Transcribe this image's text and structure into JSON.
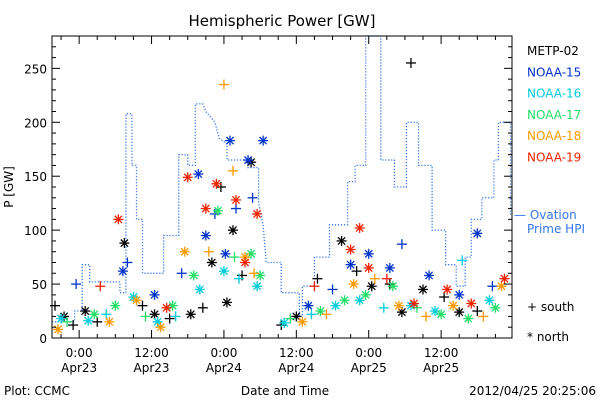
{
  "chart_data": {
    "type": "scatter",
    "title": "Hemispheric Power [GW]",
    "ylabel": "P [GW]",
    "xlabel": "Date and Time",
    "x_unit": "UT time",
    "xlim": [
      "2012-04-22T19:30",
      "2012-04-25T23:45"
    ],
    "ylim": [
      0,
      280
    ],
    "yticks": [
      0,
      50,
      100,
      150,
      200,
      250
    ],
    "xticks": [
      {
        "time": "2012-04-23T00:00",
        "line1": "0:00",
        "line2": "Apr23"
      },
      {
        "time": "2012-04-23T12:00",
        "line1": "12:00",
        "line2": "Apr23"
      },
      {
        "time": "2012-04-24T00:00",
        "line1": "0:00",
        "line2": "Apr24"
      },
      {
        "time": "2012-04-24T12:00",
        "line1": "12:00",
        "line2": "Apr24"
      },
      {
        "time": "2012-04-25T00:00",
        "line1": "0:00",
        "line2": "Apr25"
      },
      {
        "time": "2012-04-25T12:00",
        "line1": "12:00",
        "line2": "Apr25"
      }
    ],
    "legend_placement": "right",
    "legend": [
      {
        "name": "METP-02",
        "color": "#000000"
      },
      {
        "name": "NOAA-15",
        "color": "#0033cc"
      },
      {
        "name": "NOAA-16",
        "color": "#00ccdd"
      },
      {
        "name": "NOAA-17",
        "color": "#22dd66"
      },
      {
        "name": "NOAA-18",
        "color": "#ff9900"
      },
      {
        "name": "NOAA-19",
        "color": "#ee2200"
      }
    ],
    "ovation_line": {
      "label_line1": "— Ovation",
      "label_line2": "Prime HPI",
      "color": "#3377ee",
      "points": [
        [
          "2012-04-22T19:30",
          15
        ],
        [
          "2012-04-22T23:15",
          15
        ],
        [
          "2012-04-22T23:15",
          25
        ],
        [
          "2012-04-23T00:30",
          25
        ],
        [
          "2012-04-23T00:30",
          68
        ],
        [
          "2012-04-23T01:45",
          68
        ],
        [
          "2012-04-23T01:45",
          52
        ],
        [
          "2012-04-23T06:45",
          52
        ],
        [
          "2012-04-23T06:45",
          42
        ],
        [
          "2012-04-23T07:45",
          42
        ],
        [
          "2012-04-23T07:45",
          208
        ],
        [
          "2012-04-23T08:45",
          208
        ],
        [
          "2012-04-23T08:45",
          160
        ],
        [
          "2012-04-23T09:30",
          160
        ],
        [
          "2012-04-23T09:30",
          110
        ],
        [
          "2012-04-23T10:30",
          110
        ],
        [
          "2012-04-23T10:30",
          60
        ],
        [
          "2012-04-23T14:00",
          60
        ],
        [
          "2012-04-23T14:00",
          95
        ],
        [
          "2012-04-23T16:30",
          95
        ],
        [
          "2012-04-23T16:30",
          170
        ],
        [
          "2012-04-23T18:00",
          170
        ],
        [
          "2012-04-23T18:00",
          160
        ],
        [
          "2012-04-23T19:15",
          160
        ],
        [
          "2012-04-23T19:15",
          217
        ],
        [
          "2012-04-23T20:30",
          217
        ],
        [
          "2012-04-23T21:00",
          210
        ],
        [
          "2012-04-23T22:30",
          200
        ],
        [
          "2012-04-23T23:15",
          185
        ],
        [
          "2012-04-24T00:30",
          180
        ],
        [
          "2012-04-24T00:30",
          165
        ],
        [
          "2012-04-24T04:00",
          165
        ],
        [
          "2012-04-24T04:00",
          158
        ],
        [
          "2012-04-24T05:45",
          158
        ],
        [
          "2012-04-24T05:45",
          125
        ],
        [
          "2012-04-24T06:30",
          105
        ],
        [
          "2012-04-24T07:00",
          70
        ],
        [
          "2012-04-24T09:30",
          70
        ],
        [
          "2012-04-24T09:30",
          42
        ],
        [
          "2012-04-24T12:30",
          42
        ],
        [
          "2012-04-24T12:30",
          20
        ],
        [
          "2012-04-24T13:00",
          20
        ],
        [
          "2012-04-24T13:00",
          48
        ],
        [
          "2012-04-24T15:00",
          48
        ],
        [
          "2012-04-24T15:00",
          75
        ],
        [
          "2012-04-24T17:30",
          75
        ],
        [
          "2012-04-24T17:30",
          105
        ],
        [
          "2012-04-24T20:30",
          105
        ],
        [
          "2012-04-24T20:30",
          145
        ],
        [
          "2012-04-24T21:45",
          145
        ],
        [
          "2012-04-24T21:45",
          160
        ],
        [
          "2012-04-24T23:30",
          160
        ],
        [
          "2012-04-24T23:30",
          280
        ],
        [
          "2012-04-25T02:00",
          280
        ],
        [
          "2012-04-25T02:00",
          165
        ],
        [
          "2012-04-25T04:15",
          165
        ],
        [
          "2012-04-25T04:15",
          140
        ],
        [
          "2012-04-25T06:15",
          140
        ],
        [
          "2012-04-25T06:15",
          200
        ],
        [
          "2012-04-25T08:15",
          200
        ],
        [
          "2012-04-25T08:15",
          160
        ],
        [
          "2012-04-25T10:30",
          160
        ],
        [
          "2012-04-25T10:30",
          100
        ],
        [
          "2012-04-25T12:45",
          100
        ],
        [
          "2012-04-25T12:45",
          68
        ],
        [
          "2012-04-25T14:30",
          68
        ],
        [
          "2012-04-25T14:30",
          48
        ],
        [
          "2012-04-25T16:00",
          48
        ],
        [
          "2012-04-25T16:00",
          75
        ],
        [
          "2012-04-25T17:00",
          75
        ],
        [
          "2012-04-25T17:00",
          110
        ],
        [
          "2012-04-25T18:45",
          110
        ],
        [
          "2012-04-25T18:45",
          130
        ],
        [
          "2012-04-25T20:45",
          130
        ],
        [
          "2012-04-25T20:45",
          165
        ],
        [
          "2012-04-25T21:30",
          165
        ],
        [
          "2012-04-25T21:30",
          200
        ],
        [
          "2012-04-25T23:30",
          200
        ],
        [
          "2012-04-25T23:30",
          115
        ],
        [
          "2012-04-25T23:45",
          115
        ]
      ]
    },
    "marker_legend": [
      {
        "symbol": "+",
        "label": "south"
      },
      {
        "symbol": "*",
        "label": "north"
      }
    ],
    "series": [
      {
        "name": "METP-02",
        "color": "#000000",
        "points": [
          [
            "2012-04-22T20:00",
            30,
            "+"
          ],
          [
            "2012-04-22T21:30",
            20,
            "*"
          ],
          [
            "2012-04-22T23:00",
            12,
            "+"
          ],
          [
            "2012-04-23T01:00",
            25,
            "*"
          ],
          [
            "2012-04-23T03:00",
            15,
            "+"
          ],
          [
            "2012-04-23T07:30",
            88,
            "*"
          ],
          [
            "2012-04-23T10:30",
            30,
            "+"
          ],
          [
            "2012-04-23T12:30",
            22,
            "*"
          ],
          [
            "2012-04-23T15:00",
            18,
            "+"
          ],
          [
            "2012-04-23T18:30",
            22,
            "*"
          ],
          [
            "2012-04-23T20:30",
            28,
            "+"
          ],
          [
            "2012-04-23T22:00",
            70,
            "*"
          ],
          [
            "2012-04-23T23:30",
            140,
            "+"
          ],
          [
            "2012-04-24T00:30",
            33,
            "*"
          ],
          [
            "2012-04-24T01:30",
            100,
            "*"
          ],
          [
            "2012-04-24T03:00",
            58,
            "+"
          ],
          [
            "2012-04-24T04:30",
            163,
            "*"
          ],
          [
            "2012-04-24T09:30",
            12,
            "+"
          ],
          [
            "2012-04-24T12:00",
            20,
            "*"
          ],
          [
            "2012-04-24T15:30",
            55,
            "+"
          ],
          [
            "2012-04-24T19:30",
            90,
            "*"
          ],
          [
            "2012-04-24T22:00",
            62,
            "+"
          ],
          [
            "2012-04-25T00:30",
            48,
            "*"
          ],
          [
            "2012-04-25T03:30",
            50,
            "+"
          ],
          [
            "2012-04-25T05:30",
            24,
            "*"
          ],
          [
            "2012-04-25T07:00",
            255,
            "+"
          ],
          [
            "2012-04-25T09:00",
            45,
            "*"
          ],
          [
            "2012-04-25T12:30",
            38,
            "+"
          ],
          [
            "2012-04-25T15:00",
            24,
            "*"
          ],
          [
            "2012-04-25T18:00",
            25,
            "+"
          ]
        ]
      },
      {
        "name": "NOAA-15",
        "color": "#0033cc",
        "points": [
          [
            "2012-04-22T23:30",
            50,
            "+"
          ],
          [
            "2012-04-23T07:15",
            62,
            "*"
          ],
          [
            "2012-04-23T08:00",
            70,
            "+"
          ],
          [
            "2012-04-23T12:30",
            40,
            "*"
          ],
          [
            "2012-04-23T17:00",
            60,
            "+"
          ],
          [
            "2012-04-23T19:45",
            152,
            "*"
          ],
          [
            "2012-04-23T21:00",
            95,
            "*"
          ],
          [
            "2012-04-23T22:30",
            115,
            "+"
          ],
          [
            "2012-04-24T00:15",
            78,
            "*"
          ],
          [
            "2012-04-24T01:00",
            183,
            "*"
          ],
          [
            "2012-04-24T02:00",
            120,
            "+"
          ],
          [
            "2012-04-24T04:00",
            165,
            "*"
          ],
          [
            "2012-04-24T04:45",
            130,
            "+"
          ],
          [
            "2012-04-24T06:30",
            183,
            "*"
          ],
          [
            "2012-04-24T14:00",
            30,
            "*"
          ],
          [
            "2012-04-24T18:00",
            45,
            "+"
          ],
          [
            "2012-04-24T21:00",
            68,
            "*"
          ],
          [
            "2012-04-25T00:00",
            78,
            "*"
          ],
          [
            "2012-04-25T03:30",
            65,
            "*"
          ],
          [
            "2012-04-25T05:30",
            87,
            "+"
          ],
          [
            "2012-04-25T10:00",
            58,
            "*"
          ],
          [
            "2012-04-25T15:00",
            40,
            "*"
          ],
          [
            "2012-04-25T18:00",
            97,
            "*"
          ],
          [
            "2012-04-25T20:30",
            48,
            "+"
          ]
        ]
      },
      {
        "name": "NOAA-16",
        "color": "#00ccdd",
        "points": [
          [
            "2012-04-22T21:00",
            18,
            "*"
          ],
          [
            "2012-04-23T01:30",
            16,
            "*"
          ],
          [
            "2012-04-23T04:30",
            22,
            "+"
          ],
          [
            "2012-04-23T09:00",
            38,
            "*"
          ],
          [
            "2012-04-23T13:00",
            15,
            "*"
          ],
          [
            "2012-04-23T16:00",
            20,
            "+"
          ],
          [
            "2012-04-23T20:00",
            45,
            "*"
          ],
          [
            "2012-04-24T00:00",
            62,
            "*"
          ],
          [
            "2012-04-24T02:30",
            55,
            "+"
          ],
          [
            "2012-04-24T05:30",
            48,
            "*"
          ],
          [
            "2012-04-24T10:00",
            14,
            "*"
          ],
          [
            "2012-04-24T14:30",
            22,
            "+"
          ],
          [
            "2012-04-24T18:30",
            30,
            "*"
          ],
          [
            "2012-04-24T22:30",
            35,
            "*"
          ],
          [
            "2012-04-25T02:30",
            28,
            "+"
          ],
          [
            "2012-04-25T07:00",
            30,
            "*"
          ],
          [
            "2012-04-25T11:00",
            25,
            "*"
          ],
          [
            "2012-04-25T15:30",
            72,
            "+"
          ],
          [
            "2012-04-25T20:00",
            35,
            "*"
          ]
        ]
      },
      {
        "name": "NOAA-17",
        "color": "#22dd66",
        "points": [
          [
            "2012-04-22T22:00",
            15,
            "+"
          ],
          [
            "2012-04-23T02:30",
            22,
            "*"
          ],
          [
            "2012-04-23T06:00",
            30,
            "*"
          ],
          [
            "2012-04-23T11:00",
            20,
            "+"
          ],
          [
            "2012-04-23T15:30",
            30,
            "*"
          ],
          [
            "2012-04-23T19:00",
            58,
            "*"
          ],
          [
            "2012-04-23T23:00",
            118,
            "*"
          ],
          [
            "2012-04-24T01:45",
            75,
            "+"
          ],
          [
            "2012-04-24T04:30",
            78,
            "*"
          ],
          [
            "2012-04-24T06:00",
            58,
            "*"
          ],
          [
            "2012-04-24T11:00",
            18,
            "+"
          ],
          [
            "2012-04-24T16:00",
            25,
            "*"
          ],
          [
            "2012-04-24T20:00",
            35,
            "*"
          ],
          [
            "2012-04-24T23:30",
            40,
            "*"
          ],
          [
            "2012-04-25T04:00",
            48,
            "*"
          ],
          [
            "2012-04-25T08:00",
            28,
            "+"
          ],
          [
            "2012-04-25T12:00",
            22,
            "*"
          ],
          [
            "2012-04-25T16:30",
            18,
            "*"
          ],
          [
            "2012-04-25T21:00",
            28,
            "*"
          ]
        ]
      },
      {
        "name": "NOAA-18",
        "color": "#ff9900",
        "points": [
          [
            "2012-04-22T20:30",
            8,
            "*"
          ],
          [
            "2012-04-23T05:00",
            15,
            "*"
          ],
          [
            "2012-04-23T09:30",
            35,
            "*"
          ],
          [
            "2012-04-23T13:30",
            10,
            "*"
          ],
          [
            "2012-04-23T17:30",
            80,
            "*"
          ],
          [
            "2012-04-23T21:30",
            80,
            "+"
          ],
          [
            "2012-04-24T00:00",
            235,
            "+"
          ],
          [
            "2012-04-24T01:30",
            155,
            "+"
          ],
          [
            "2012-04-24T03:30",
            75,
            "*"
          ],
          [
            "2012-04-24T05:00",
            60,
            "+"
          ],
          [
            "2012-04-24T13:00",
            15,
            "*"
          ],
          [
            "2012-04-24T17:00",
            22,
            "+"
          ],
          [
            "2012-04-24T21:30",
            50,
            "*"
          ],
          [
            "2012-04-25T01:00",
            55,
            "+"
          ],
          [
            "2012-04-25T05:00",
            30,
            "*"
          ],
          [
            "2012-04-25T09:30",
            20,
            "+"
          ],
          [
            "2012-04-25T14:00",
            30,
            "*"
          ],
          [
            "2012-04-25T19:00",
            20,
            "+"
          ],
          [
            "2012-04-25T22:00",
            48,
            "*"
          ]
        ]
      },
      {
        "name": "NOAA-19",
        "color": "#ee2200",
        "points": [
          [
            "2012-04-23T03:30",
            48,
            "+"
          ],
          [
            "2012-04-23T06:30",
            110,
            "*"
          ],
          [
            "2012-04-23T14:30",
            28,
            "*"
          ],
          [
            "2012-04-23T18:00",
            149,
            "*"
          ],
          [
            "2012-04-23T21:00",
            120,
            "*"
          ],
          [
            "2012-04-23T22:45",
            143,
            "*"
          ],
          [
            "2012-04-24T02:00",
            128,
            "*"
          ],
          [
            "2012-04-24T03:30",
            70,
            "*"
          ],
          [
            "2012-04-24T05:30",
            115,
            "*"
          ],
          [
            "2012-04-24T15:00",
            48,
            "+"
          ],
          [
            "2012-04-24T21:00",
            82,
            "*"
          ],
          [
            "2012-04-24T22:30",
            102,
            "*"
          ],
          [
            "2012-04-25T00:00",
            65,
            "*"
          ],
          [
            "2012-04-25T03:00",
            55,
            "+"
          ],
          [
            "2012-04-25T07:30",
            32,
            "*"
          ],
          [
            "2012-04-25T13:00",
            45,
            "*"
          ],
          [
            "2012-04-25T17:00",
            32,
            "*"
          ],
          [
            "2012-04-25T22:30",
            55,
            "*"
          ]
        ]
      }
    ]
  },
  "footer": {
    "plot_credit": "Plot: CCMC",
    "timestamp": "2012/04/25 20:25:06"
  }
}
